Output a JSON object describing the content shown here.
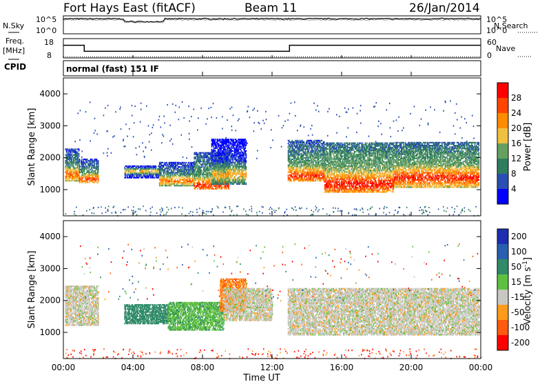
{
  "header": {
    "radar": "Fort Hays East (fitACF)",
    "beam": "Beam 11",
    "date": "26/Jan/2014"
  },
  "top_panels": {
    "nsky_label": "N.Sky",
    "nsearch_label": "N.Search",
    "noise_ticks": [
      "10^5",
      "10^0"
    ],
    "freq_label_1": "Freq.",
    "freq_label_2": "[MHz]",
    "freq_ticks": [
      "18",
      "8"
    ],
    "nave_label": "Nave",
    "nave_ticks": [
      "60",
      "0"
    ],
    "cpid_label": "CPID",
    "cpid_text": "normal (fast) 151 IF"
  },
  "axes": {
    "y_label": "Slant Range [km]",
    "x_label": "Time UT",
    "y_ticks": [
      "1000",
      "2000",
      "3000",
      "4000"
    ],
    "x_ticks": [
      "00:00",
      "04:00",
      "08:00",
      "12:00",
      "16:00",
      "20:00",
      "00:00"
    ]
  },
  "colorbars": {
    "power": {
      "label": "Power [dB]",
      "ticks": [
        "4",
        "8",
        "12",
        "16",
        "20",
        "24",
        "28"
      ],
      "colors": [
        "#0000ff",
        "#2a4fb3",
        "#2f7d5f",
        "#66a060",
        "#f0c040",
        "#ff8c00",
        "#ff4500",
        "#ff0000"
      ]
    },
    "velocity": {
      "label_text": "Velocity [m s",
      "label_sup": "-1",
      "label_close": "]",
      "ticks": [
        "200",
        "100",
        "50",
        "15",
        "-15",
        "-50",
        "-100",
        "-200"
      ],
      "colors": [
        "#1b2fb0",
        "#285fb0",
        "#2f8b68",
        "#5fc040",
        "#c8c8c0",
        "#ff9a1a",
        "#ff5a10",
        "#ff0000"
      ]
    }
  },
  "chart_data": {
    "type": "heatmap",
    "x_range_hours": [
      0,
      24
    ],
    "y_range_km": [
      180,
      4500
    ],
    "noise": {
      "sky_level": 4.2,
      "search_level": 3.9,
      "dip": {
        "start": 3.5,
        "end": 5.8,
        "level": 3.4
      }
    },
    "frequency_mhz": [
      {
        "t0": 0,
        "t1": 1.2,
        "value": 15
      },
      {
        "t0": 1.2,
        "t1": 13.0,
        "value": 11
      },
      {
        "t0": 13.0,
        "t1": 24,
        "value": 15
      }
    ],
    "nave": 25,
    "power_regions": [
      {
        "t0": 0.1,
        "t1": 0.9,
        "r0": 1300,
        "r1": 2300,
        "core": 1500,
        "level": 14
      },
      {
        "t0": 0.9,
        "t1": 2.0,
        "r0": 1250,
        "r1": 2000,
        "core": 1350,
        "level": 15
      },
      {
        "t0": 3.5,
        "t1": 5.5,
        "r0": 1400,
        "r1": 1800,
        "core": 1600,
        "level": 9
      },
      {
        "t0": 5.5,
        "t1": 7.5,
        "r0": 1150,
        "r1": 1900,
        "core": 1300,
        "level": 13
      },
      {
        "t0": 7.5,
        "t1": 9.5,
        "r0": 1050,
        "r1": 2200,
        "core": 1150,
        "level": 16
      },
      {
        "t0": 8.5,
        "t1": 10.5,
        "r0": 1200,
        "r1": 2600,
        "core": 1500,
        "level": 9
      },
      {
        "t0": 12.9,
        "t1": 15.0,
        "r0": 1300,
        "r1": 2600,
        "core": 1450,
        "level": 16
      },
      {
        "t0": 15.0,
        "t1": 19.0,
        "r0": 950,
        "r1": 2500,
        "core": 1200,
        "level": 18
      },
      {
        "t0": 19.0,
        "t1": 23.9,
        "r0": 1100,
        "r1": 2500,
        "core": 1400,
        "level": 17
      }
    ],
    "velocity_regions": [
      {
        "t0": 0.1,
        "t1": 2.0,
        "r0": 1250,
        "r1": 2500,
        "v": 0
      },
      {
        "t0": 3.5,
        "t1": 6.0,
        "r0": 1300,
        "r1": 1900,
        "v": 80
      },
      {
        "t0": 6.0,
        "t1": 9.2,
        "r0": 1100,
        "r1": 2000,
        "v": 40
      },
      {
        "t0": 9.0,
        "t1": 10.5,
        "r0": 1700,
        "r1": 2700,
        "v": -50
      },
      {
        "t0": 9.2,
        "t1": 12.0,
        "r0": 1400,
        "r1": 2400,
        "v": 0
      },
      {
        "t0": 12.9,
        "t1": 23.9,
        "r0": 950,
        "r1": 2400,
        "v": 0
      }
    ],
    "ground_scatter_band_km": [
      200,
      500
    ]
  }
}
